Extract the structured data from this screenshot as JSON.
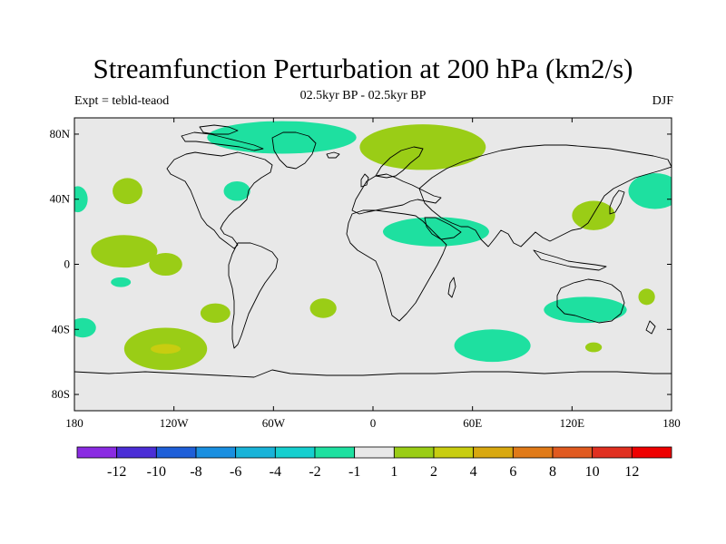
{
  "chart_data": {
    "type": "heatmap",
    "title": "Streamfunction Perturbation at 200 hPa (km2/s)",
    "subtitle": "02.5kyr BP - 02.5kyr BP",
    "left_label": "Expt = tebld-teaod",
    "right_label": "DJF",
    "xlim": [
      -180,
      180
    ],
    "ylim": [
      -90,
      90
    ],
    "x_ticks": [
      {
        "value": -180,
        "label": "180"
      },
      {
        "value": -120,
        "label": "120W"
      },
      {
        "value": -60,
        "label": "60W"
      },
      {
        "value": 0,
        "label": "0"
      },
      {
        "value": 60,
        "label": "60E"
      },
      {
        "value": 120,
        "label": "120E"
      },
      {
        "value": 180,
        "label": "180"
      }
    ],
    "y_ticks": [
      {
        "value": 80,
        "label": "80N"
      },
      {
        "value": 40,
        "label": "40N"
      },
      {
        "value": 0,
        "label": "0"
      },
      {
        "value": -40,
        "label": "40S"
      },
      {
        "value": -80,
        "label": "80S"
      }
    ],
    "colorbar": {
      "levels": [
        "-12",
        "-10",
        "-8",
        "-6",
        "-4",
        "-2",
        "-1",
        "1",
        "2",
        "4",
        "6",
        "8",
        "10",
        "12"
      ],
      "colors": [
        "#8a2be2",
        "#4b2ed6",
        "#1f5fd8",
        "#1a8fe0",
        "#19b3d8",
        "#16cfcf",
        "#1ee0a0",
        "#e8e8e8",
        "#9acd16",
        "#c8cd10",
        "#d8a810",
        "#e07a18",
        "#e05a20",
        "#e03020",
        "#ee0000"
      ]
    },
    "regions": [
      {
        "id": "greenland-north-atlantic",
        "value": -1.5,
        "lon": -55,
        "lat": 78,
        "rlon": 45,
        "rlat": 10
      },
      {
        "id": "scandinavia-siberia",
        "value": 1.5,
        "lon": 30,
        "lat": 72,
        "rlon": 38,
        "rlat": 14
      },
      {
        "id": "north-pacific-east",
        "value": 1.5,
        "lon": -148,
        "lat": 45,
        "rlon": 9,
        "rlat": 8
      },
      {
        "id": "west-pacific-edge",
        "value": -1.5,
        "lon": -178,
        "lat": 40,
        "rlon": 6,
        "rlat": 8
      },
      {
        "id": "great-lakes",
        "value": -1.5,
        "lon": -82,
        "lat": 45,
        "rlon": 8,
        "rlat": 6
      },
      {
        "id": "east-pacific-tropics",
        "value": 1.5,
        "lon": -150,
        "lat": 8,
        "rlon": 20,
        "rlat": 10
      },
      {
        "id": "east-pacific-tropics-tail",
        "value": 1.5,
        "lon": -125,
        "lat": 0,
        "rlon": 10,
        "rlat": 7
      },
      {
        "id": "middle-east-band",
        "value": -1.5,
        "lon": 38,
        "lat": 20,
        "rlon": 32,
        "rlat": 9
      },
      {
        "id": "east-asia",
        "value": 1.5,
        "lon": 133,
        "lat": 30,
        "rlon": 13,
        "rlat": 9
      },
      {
        "id": "northwest-pacific",
        "value": -1.5,
        "lon": 170,
        "lat": 45,
        "rlon": 16,
        "rlat": 11
      },
      {
        "id": "south-pacific-small",
        "value": -1.5,
        "lon": -152,
        "lat": -11,
        "rlon": 6,
        "rlat": 3
      },
      {
        "id": "south-pacific-mid",
        "value": 1.5,
        "lon": -95,
        "lat": -30,
        "rlon": 9,
        "rlat": 6
      },
      {
        "id": "south-atlantic",
        "value": 1.5,
        "lon": -30,
        "lat": -27,
        "rlon": 8,
        "rlat": 6
      },
      {
        "id": "southeast-pacific-center",
        "value": 3.0,
        "lon": -125,
        "lat": -52,
        "rlon": 9,
        "rlat": 3
      },
      {
        "id": "southeast-pacific",
        "value": 1.5,
        "lon": -125,
        "lat": -52,
        "rlon": 25,
        "rlat": 13
      },
      {
        "id": "southwest-pacific-edge",
        "value": -1.5,
        "lon": -175,
        "lat": -39,
        "rlon": 8,
        "rlat": 6
      },
      {
        "id": "south-indian",
        "value": -1.5,
        "lon": 72,
        "lat": -50,
        "rlon": 23,
        "rlat": 10
      },
      {
        "id": "australia",
        "value": -1.5,
        "lon": 128,
        "lat": -28,
        "rlon": 25,
        "rlat": 8
      },
      {
        "id": "new-zealand-small",
        "value": 1.5,
        "lon": 165,
        "lat": -20,
        "rlon": 5,
        "rlat": 5
      },
      {
        "id": "south-of-australia",
        "value": 1.5,
        "lon": 133,
        "lat": -51,
        "rlon": 5,
        "rlat": 3
      }
    ]
  }
}
